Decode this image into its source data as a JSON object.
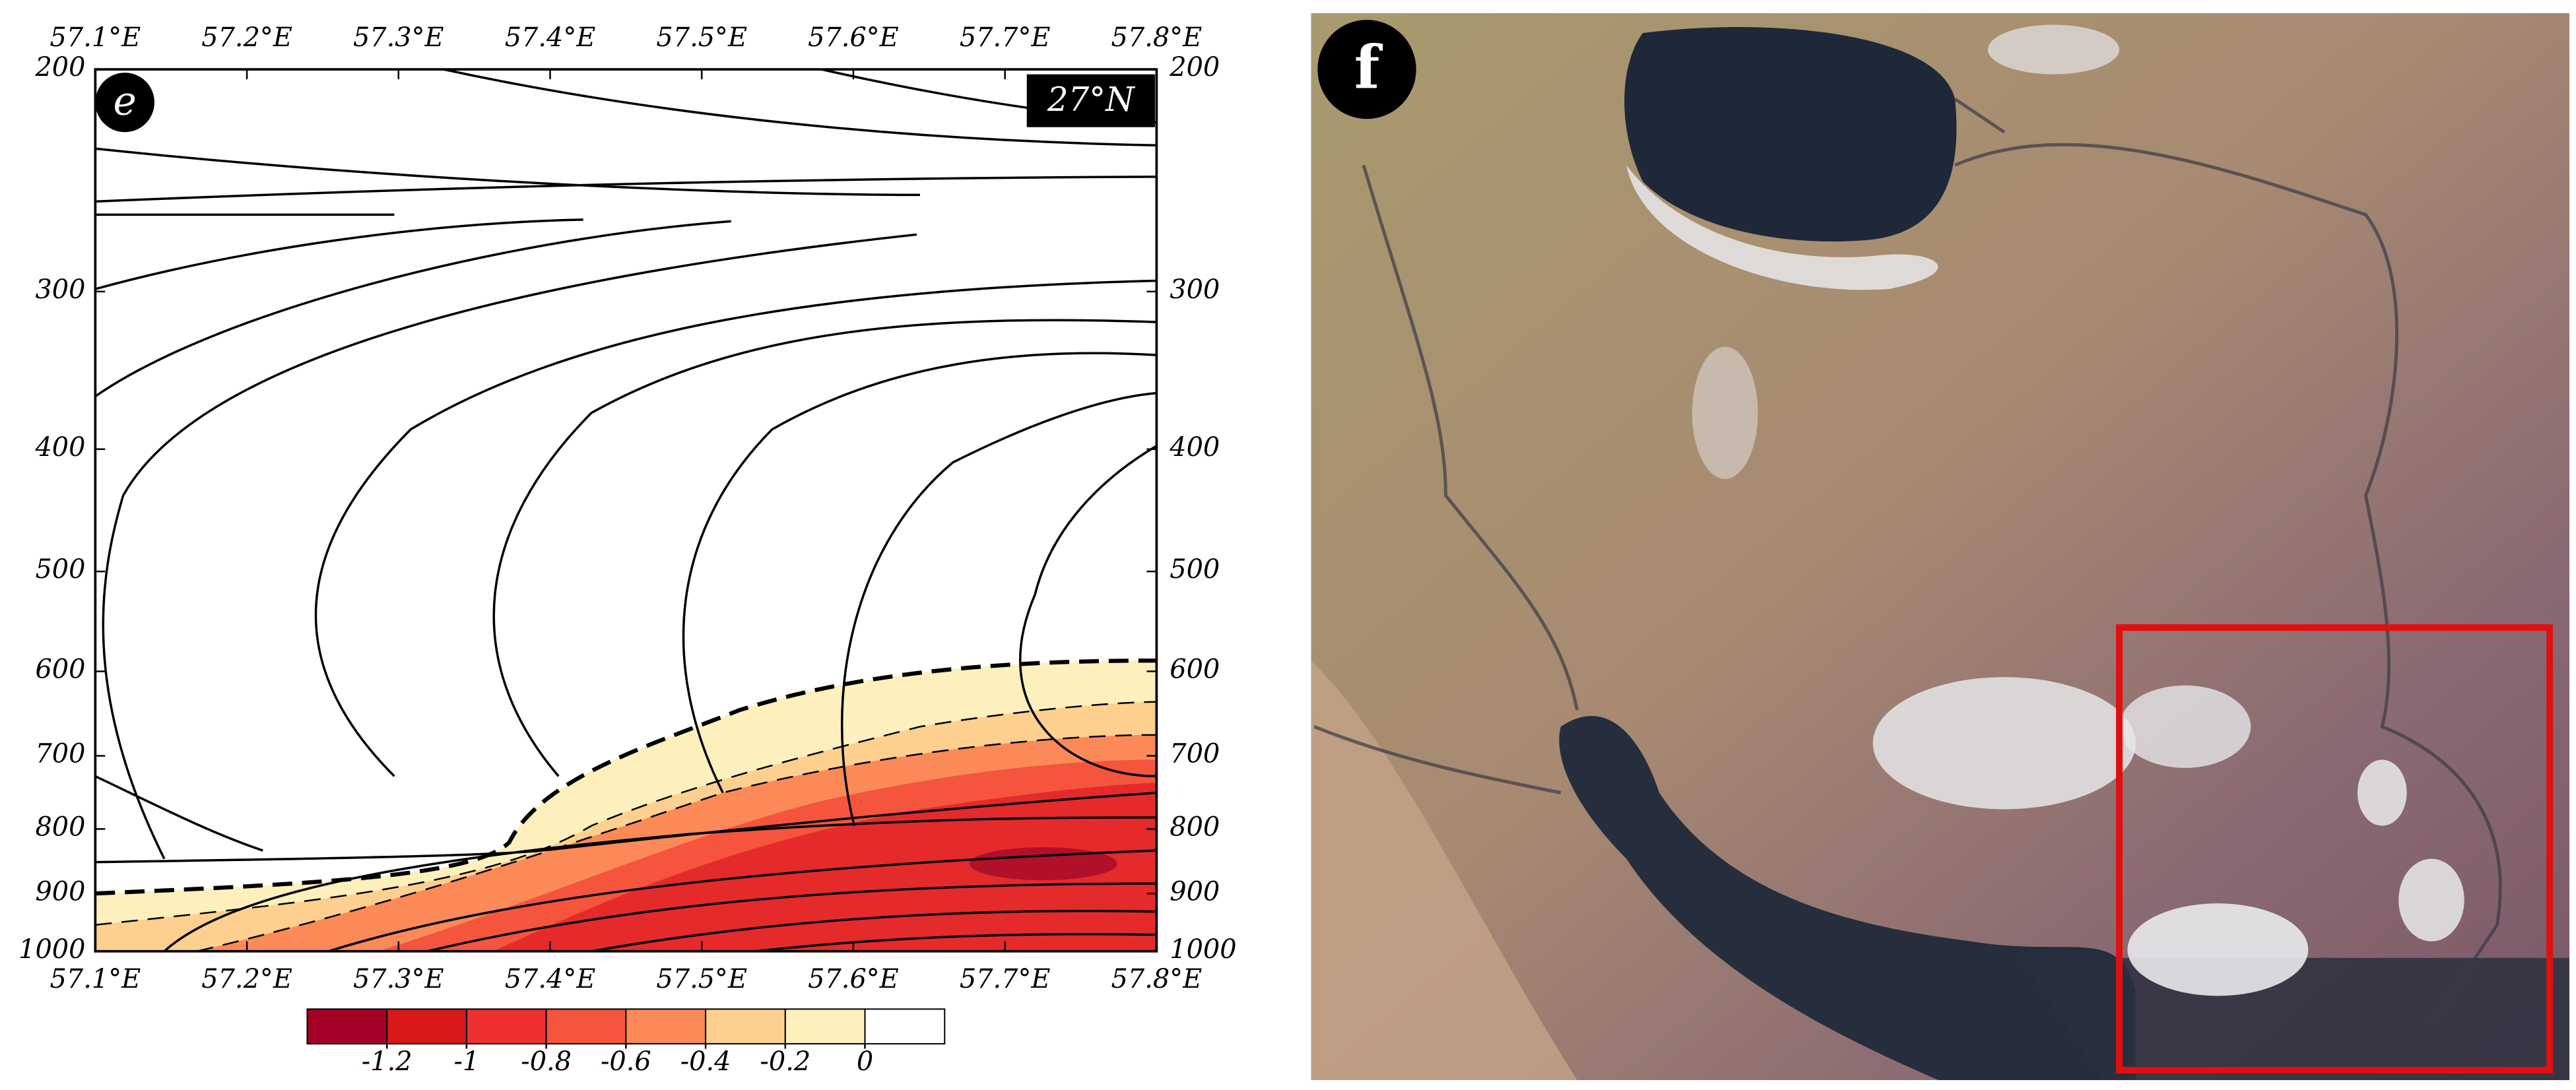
{
  "chart_data": [
    {
      "type": "streamline-section",
      "panel_label": "e",
      "annotation": "27°N",
      "xlim": [
        57.1,
        57.8
      ],
      "xticks": [
        {
          "value": 57.1,
          "label": "57.1°E"
        },
        {
          "value": 57.2,
          "label": "57.2°E"
        },
        {
          "value": 57.3,
          "label": "57.3°E"
        },
        {
          "value": 57.4,
          "label": "57.4°E"
        },
        {
          "value": 57.5,
          "label": "57.5°E"
        },
        {
          "value": 57.6,
          "label": "57.6°E"
        },
        {
          "value": 57.7,
          "label": "57.7°E"
        },
        {
          "value": 57.8,
          "label": "57.8°E"
        }
      ],
      "ylim": [
        200,
        1000
      ],
      "log_y": true,
      "yticks": [
        200,
        300,
        400,
        500,
        600,
        700,
        800,
        900,
        1000
      ],
      "colorbar": {
        "ticks": [
          -1.2,
          -1,
          -0.8,
          -0.6,
          -0.4,
          -0.2,
          0
        ],
        "colors": [
          "#a50026",
          "#d7191c",
          "#ee3030",
          "#f4553c",
          "#fb8a58",
          "#fdd08f",
          "#fdf0bd",
          "#ffffff"
        ]
      }
    },
    {
      "type": "image",
      "panel_label": "f"
    }
  ]
}
